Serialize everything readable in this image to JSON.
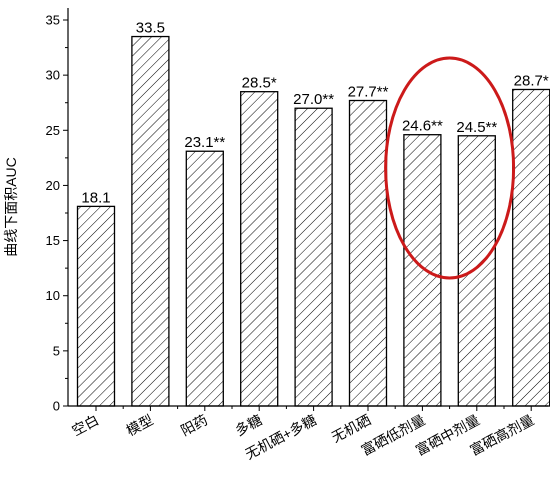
{
  "chart_data": {
    "type": "bar",
    "categories": [
      "空白",
      "模型",
      "阳药",
      "多糖",
      "无机硒+多糖",
      "无机硒",
      "富硒低剂量",
      "富硒中剂量",
      "富硒高剂量"
    ],
    "values": [
      18.1,
      33.5,
      23.1,
      28.5,
      27.0,
      27.7,
      24.6,
      24.5,
      28.7
    ],
    "data_labels": [
      "18.1",
      "33.5",
      "23.1**",
      "28.5*",
      "27.0**",
      "27.7**",
      "24.6**",
      "24.5**",
      "28.7*"
    ],
    "ylabel": "曲线下面积AUC",
    "ylim": [
      0,
      35
    ],
    "yticks": [
      "0",
      "5",
      "10",
      "15",
      "20",
      "25",
      "30",
      "35"
    ],
    "grid": false,
    "bar_fill": "hatched",
    "highlight": {
      "categories": [
        "富硒低剂量",
        "富硒中剂量"
      ],
      "color": "#cc1a1a"
    },
    "colors": {
      "bar_stroke": "#000000",
      "hatch": "#000000",
      "highlight": "#cc1a1a"
    }
  }
}
